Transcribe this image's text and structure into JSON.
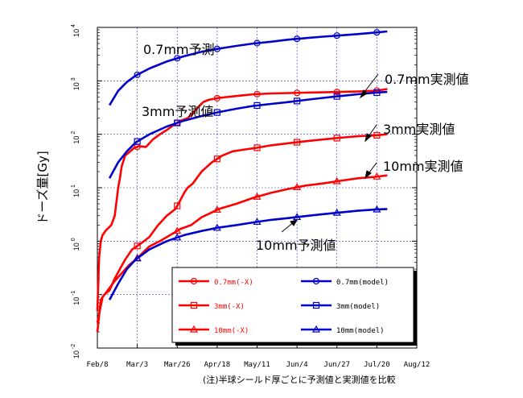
{
  "chart_data": {
    "type": "line",
    "title": "",
    "ylabel": "ドーズ量[Gy]",
    "y_scale": "log",
    "ylim": [
      0.01,
      10000
    ],
    "y_ticks": [
      {
        "base": "10",
        "exp": "4",
        "value": 10000
      },
      {
        "base": "10",
        "exp": "3",
        "value": 1000
      },
      {
        "base": "10",
        "exp": "2",
        "value": 100
      },
      {
        "base": "10",
        "exp": "1",
        "value": 10
      },
      {
        "base": "10",
        "exp": "0",
        "value": 1
      },
      {
        "base": "10",
        "exp": "-1",
        "value": 0.1
      },
      {
        "base": "10",
        "exp": "-2",
        "value": 0.01
      }
    ],
    "x_ticks": [
      "Feb/8",
      "Mar/3",
      "Mar/26",
      "Apr/18",
      "May/11",
      "Jun/4",
      "Jun/27",
      "Jul/20",
      "Aug/12"
    ],
    "x_axis": "days after Feb/8",
    "xlim": [
      0,
      184
    ],
    "grid": true,
    "legend_position": "bottom-right",
    "series": [
      {
        "name": "0.7mm(-X)",
        "color": "#ff0000",
        "marker": "circle",
        "kind": "measured",
        "x": [
          0,
          1,
          2,
          3,
          5,
          8,
          10,
          12,
          13,
          14,
          16,
          18,
          21,
          24,
          28,
          32,
          36,
          40,
          44,
          48,
          52,
          55,
          58,
          61,
          64,
          70,
          80,
          90,
          100,
          110,
          120,
          130,
          140,
          150,
          160,
          167
        ],
        "y": [
          0.05,
          0.5,
          1.0,
          1.3,
          1.6,
          2.0,
          3.0,
          10.0,
          15.0,
          25.0,
          40.0,
          45.0,
          55.0,
          60.0,
          58.0,
          80.0,
          100.0,
          120.0,
          150.0,
          180.0,
          200.0,
          250.0,
          320.0,
          400.0,
          440.0,
          480.0,
          520.0,
          560.0,
          580.0,
          590.0,
          600.0,
          610.0,
          620.0,
          630.0,
          650.0,
          700.0
        ]
      },
      {
        "name": "0.7mm(model)",
        "color": "#0000cc",
        "marker": "circle",
        "kind": "model",
        "x": [
          7,
          12,
          17,
          22,
          30,
          40,
          50,
          60,
          70,
          80,
          90,
          100,
          110,
          120,
          130,
          140,
          150,
          160,
          167
        ],
        "y": [
          350.0,
          650.0,
          950.0,
          1250.0,
          1700.0,
          2300.0,
          2900.0,
          3500.0,
          4000.0,
          4500.0,
          5000.0,
          5400.0,
          5900.0,
          6300.0,
          6700.0,
          7100.0,
          7500.0,
          8000.0,
          8400.0
        ]
      },
      {
        "name": "3mm(-X)",
        "color": "#ff0000",
        "marker": "square",
        "kind": "measured",
        "x": [
          0,
          2,
          4,
          7,
          10,
          13,
          16,
          20,
          25,
          30,
          35,
          40,
          45,
          48,
          50,
          52,
          55,
          60,
          66,
          72,
          78,
          85,
          92,
          100,
          110,
          120,
          130,
          140,
          150,
          160,
          167
        ],
        "y": [
          0.02,
          0.08,
          0.1,
          0.12,
          0.2,
          0.3,
          0.45,
          0.7,
          0.9,
          1.2,
          2.0,
          3.0,
          4.0,
          6.0,
          8.0,
          10.0,
          12.0,
          20.0,
          30.0,
          40.0,
          48.0,
          52.0,
          56.0,
          62.0,
          68.0,
          74.0,
          80.0,
          86.0,
          92.0,
          95.0,
          100.0
        ]
      },
      {
        "name": "3mm(model)",
        "color": "#0000cc",
        "marker": "square",
        "kind": "model",
        "x": [
          7,
          12,
          17,
          22,
          30,
          40,
          50,
          60,
          70,
          80,
          90,
          100,
          110,
          120,
          130,
          140,
          150,
          160,
          167
        ],
        "y": [
          15.0,
          30.0,
          48.0,
          70.0,
          100.0,
          140.0,
          180.0,
          220.0,
          260.0,
          300.0,
          340.0,
          370.0,
          400.0,
          440.0,
          480.0,
          520.0,
          560.0,
          600.0,
          620.0
        ]
      },
      {
        "name": "10mm(-X)",
        "color": "#ff0000",
        "marker": "triangle",
        "kind": "measured",
        "x": [
          0,
          3,
          6,
          10,
          14,
          18,
          22,
          26,
          30,
          36,
          42,
          48,
          54,
          60,
          70,
          80,
          90,
          100,
          110,
          120,
          130,
          140,
          150,
          160,
          167
        ],
        "y": [
          0.03,
          0.09,
          0.12,
          0.18,
          0.25,
          0.35,
          0.45,
          0.6,
          0.8,
          1.0,
          1.3,
          1.7,
          2.0,
          2.8,
          4.0,
          5.0,
          6.5,
          8.0,
          9.5,
          11.0,
          12.0,
          13.5,
          15.0,
          16.0,
          17.0
        ]
      },
      {
        "name": "10mm(model)",
        "color": "#0000cc",
        "marker": "triangle",
        "kind": "model",
        "x": [
          7,
          12,
          17,
          22,
          30,
          40,
          50,
          60,
          70,
          80,
          90,
          100,
          110,
          120,
          130,
          140,
          150,
          160,
          167
        ],
        "y": [
          0.08,
          0.16,
          0.3,
          0.45,
          0.7,
          1.0,
          1.3,
          1.55,
          1.8,
          2.0,
          2.25,
          2.5,
          2.7,
          2.95,
          3.2,
          3.45,
          3.7,
          3.9,
          4.0
        ]
      }
    ],
    "annotations": [
      "0.7mm予測",
      "3mm予測値",
      "10mm予測値",
      "0.7mm実測値",
      "3mm実測値",
      "10mm実測値"
    ]
  },
  "ylabel_text": "ドーズ量[Gy]",
  "footnote": "(注)半球シールド厚ごとに予測値と実測値を比較"
}
